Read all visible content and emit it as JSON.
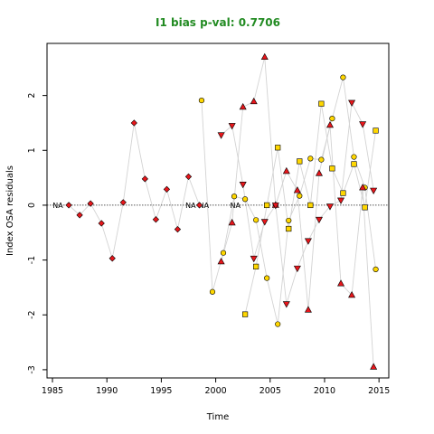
{
  "chart_data": {
    "type": "scatter",
    "title": "I1 bias p-val: 0.7706",
    "xlabel": "Time",
    "ylabel": "Index OSA residuals",
    "xlim": [
      1984.5,
      2015.9
    ],
    "ylim": [
      -3.15,
      2.95
    ],
    "x_ticks": [
      1985,
      1990,
      1995,
      2000,
      2005,
      2010,
      2015
    ],
    "y_ticks": [
      -3,
      -2,
      -1,
      0,
      1,
      2
    ],
    "reference_line": 0,
    "grid": false,
    "na_labels": [
      {
        "x": 1985.5,
        "text": "NA"
      },
      {
        "x": 1997.7,
        "text": "NA"
      },
      {
        "x": 1998.9,
        "text": "NA"
      },
      {
        "x": 2001.8,
        "text": "NA"
      }
    ],
    "series": [
      {
        "marker": "diamond",
        "color": "#e8161b",
        "x": [
          1986.5,
          1987.5,
          1988.5,
          1989.5,
          1990.5,
          1991.5,
          1992.5,
          1993.5,
          1994.5,
          1995.5,
          1996.5,
          1997.5,
          1998.5
        ],
        "y": [
          0.0,
          -0.18,
          0.03,
          -0.33,
          -0.97,
          0.05,
          1.5,
          0.48,
          -0.26,
          0.29,
          -0.44,
          0.52,
          0.0
        ]
      },
      {
        "marker": "circle",
        "color": "#ffd700",
        "x": [
          1998.7,
          1999.7,
          2000.7,
          2001.7,
          2002.7,
          2003.7,
          2004.7,
          2005.7,
          2006.7,
          2007.7,
          2008.7,
          2009.7,
          2010.7,
          2011.7,
          2012.7,
          2013.7,
          2014.7
        ],
        "y": [
          1.91,
          -1.58,
          -0.87,
          0.16,
          0.11,
          -0.27,
          -1.33,
          -2.17,
          -0.28,
          0.17,
          0.85,
          0.83,
          1.58,
          2.33,
          0.88,
          0.32,
          -1.17
        ]
      },
      {
        "marker": "triangle-up",
        "color": "#e8161b",
        "x": [
          2000.5,
          2001.5,
          2002.5,
          2003.5,
          2004.5,
          2005.5,
          2006.5,
          2007.5,
          2008.5,
          2009.5,
          2010.5,
          2011.5,
          2012.5,
          2013.5,
          2014.5
        ],
        "y": [
          -1.03,
          -0.32,
          1.79,
          1.89,
          2.7,
          0.0,
          0.62,
          0.27,
          -1.91,
          0.58,
          1.46,
          -1.43,
          -1.64,
          0.32,
          -2.95
        ]
      },
      {
        "marker": "triangle-down",
        "color": "#e8161b",
        "x": [
          2000.5,
          2001.5,
          2002.5,
          2003.5,
          2004.5,
          2005.5,
          2006.5,
          2007.5,
          2008.5,
          2009.5,
          2010.5,
          2011.5,
          2012.5,
          2013.5,
          2014.5
        ],
        "y": [
          1.28,
          1.45,
          0.38,
          -0.97,
          -0.3,
          0.0,
          -1.8,
          -1.15,
          -0.65,
          -0.26,
          -0.02,
          0.09,
          1.87,
          1.48,
          0.27
        ]
      },
      {
        "marker": "square",
        "color": "#ffd700",
        "x": [
          2002.7,
          2003.7,
          2004.7,
          2005.7,
          2006.7,
          2007.7,
          2008.7,
          2009.7,
          2010.7,
          2011.7,
          2012.7,
          2013.7,
          2014.7
        ],
        "y": [
          -1.99,
          -1.12,
          0.0,
          1.05,
          -0.43,
          0.8,
          0.0,
          1.85,
          0.67,
          0.22,
          0.75,
          -0.04,
          1.36
        ]
      }
    ]
  }
}
